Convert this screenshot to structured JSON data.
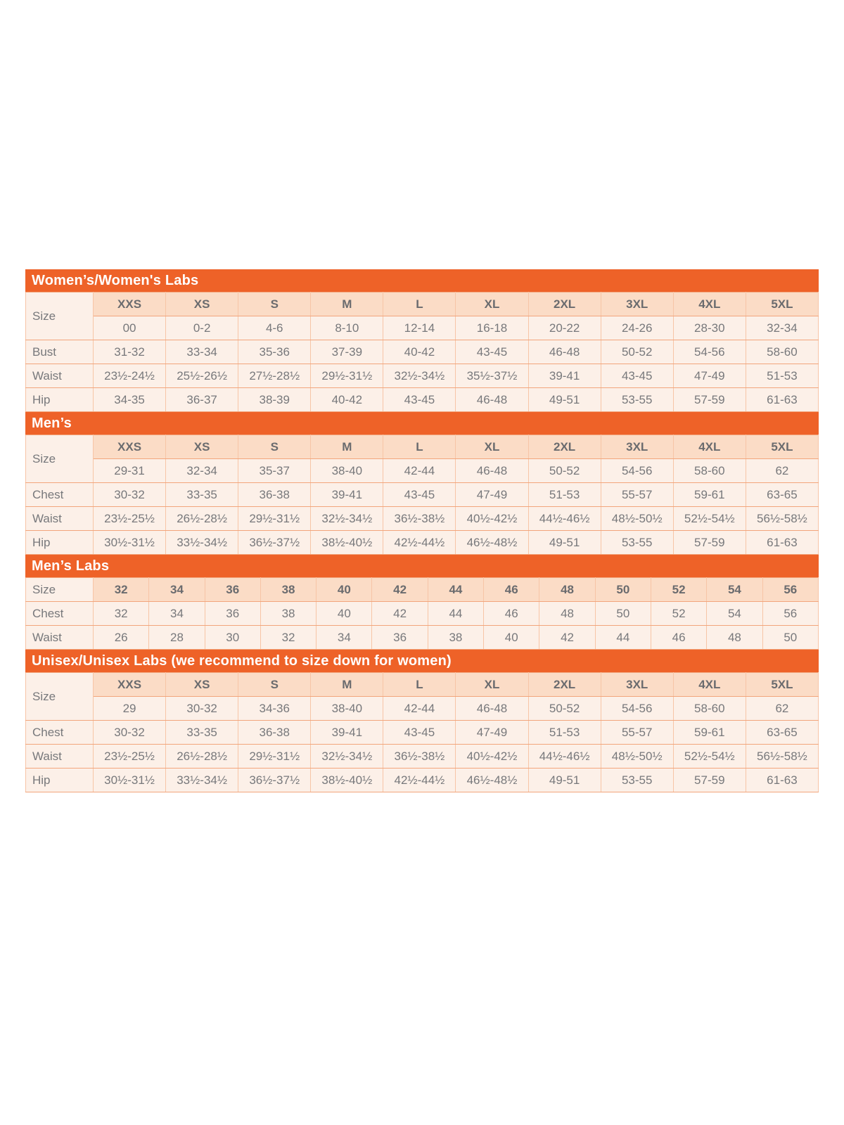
{
  "colors": {
    "band_orange": "#EE6228",
    "band_text": "#FFFFFF",
    "header_cell_bg": "#FBDCC6",
    "cell_bg": "#FCF0E8",
    "border_horizontal": "#F2A57C",
    "border_vertical": "#F7C5A6",
    "cell_text": "#77787B",
    "header_text": "#6A6B6E"
  },
  "tables": [
    {
      "title": "Women’s/Women's Labs",
      "label_header": "Size",
      "size_headers": [
        "XXS",
        "XS",
        "S",
        "M",
        "L",
        "XL",
        "2XL",
        "3XL",
        "4XL",
        "5XL"
      ],
      "size_numbers": [
        "00",
        "0-2",
        "4-6",
        "8-10",
        "12-14",
        "16-18",
        "20-22",
        "24-26",
        "28-30",
        "32-34"
      ],
      "rows": [
        {
          "label": "Bust",
          "values": [
            "31-32",
            "33-34",
            "35-36",
            "37-39",
            "40-42",
            "43-45",
            "46-48",
            "50-52",
            "54-56",
            "58-60"
          ]
        },
        {
          "label": "Waist",
          "values": [
            "23½-24½",
            "25½-26½",
            "27½-28½",
            "29½-31½",
            "32½-34½",
            "35½-37½",
            "39-41",
            "43-45",
            "47-49",
            "51-53"
          ]
        },
        {
          "label": "Hip",
          "values": [
            "34-35",
            "36-37",
            "38-39",
            "40-42",
            "43-45",
            "46-48",
            "49-51",
            "53-55",
            "57-59",
            "61-63"
          ]
        }
      ]
    },
    {
      "title": "Men’s",
      "label_header": "Size",
      "size_headers": [
        "XXS",
        "XS",
        "S",
        "M",
        "L",
        "XL",
        "2XL",
        "3XL",
        "4XL",
        "5XL"
      ],
      "size_numbers": [
        "29-31",
        "32-34",
        "35-37",
        "38-40",
        "42-44",
        "46-48",
        "50-52",
        "54-56",
        "58-60",
        "62"
      ],
      "rows": [
        {
          "label": "Chest",
          "values": [
            "30-32",
            "33-35",
            "36-38",
            "39-41",
            "43-45",
            "47-49",
            "51-53",
            "55-57",
            "59-61",
            "63-65"
          ]
        },
        {
          "label": "Waist",
          "values": [
            "23½-25½",
            "26½-28½",
            "29½-31½",
            "32½-34½",
            "36½-38½",
            "40½-42½",
            "44½-46½",
            "48½-50½",
            "52½-54½",
            "56½-58½"
          ]
        },
        {
          "label": "Hip",
          "values": [
            "30½-31½",
            "33½-34½",
            "36½-37½",
            "38½-40½",
            "42½-44½",
            "46½-48½",
            "49-51",
            "53-55",
            "57-59",
            "61-63"
          ]
        }
      ]
    },
    {
      "title": "Men’s Labs",
      "label_header": "Size",
      "size_headers": [
        "32",
        "34",
        "36",
        "38",
        "40",
        "42",
        "44",
        "46",
        "48",
        "50",
        "52",
        "54",
        "56"
      ],
      "size_numbers": null,
      "rows": [
        {
          "label": "Chest",
          "values": [
            "32",
            "34",
            "36",
            "38",
            "40",
            "42",
            "44",
            "46",
            "48",
            "50",
            "52",
            "54",
            "56"
          ]
        },
        {
          "label": "Waist",
          "values": [
            "26",
            "28",
            "30",
            "32",
            "34",
            "36",
            "38",
            "40",
            "42",
            "44",
            "46",
            "48",
            "50"
          ]
        }
      ]
    },
    {
      "title": "Unisex/Unisex Labs (we recommend to size down for women)",
      "label_header": "Size",
      "size_headers": [
        "XXS",
        "XS",
        "S",
        "M",
        "L",
        "XL",
        "2XL",
        "3XL",
        "4XL",
        "5XL"
      ],
      "size_numbers": [
        "29",
        "30-32",
        "34-36",
        "38-40",
        "42-44",
        "46-48",
        "50-52",
        "54-56",
        "58-60",
        "62"
      ],
      "rows": [
        {
          "label": "Chest",
          "values": [
            "30-32",
            "33-35",
            "36-38",
            "39-41",
            "43-45",
            "47-49",
            "51-53",
            "55-57",
            "59-61",
            "63-65"
          ]
        },
        {
          "label": "Waist",
          "values": [
            "23½-25½",
            "26½-28½",
            "29½-31½",
            "32½-34½",
            "36½-38½",
            "40½-42½",
            "44½-46½",
            "48½-50½",
            "52½-54½",
            "56½-58½"
          ]
        },
        {
          "label": "Hip",
          "values": [
            "30½-31½",
            "33½-34½",
            "36½-37½",
            "38½-40½",
            "42½-44½",
            "46½-48½",
            "49-51",
            "53-55",
            "57-59",
            "61-63"
          ]
        }
      ]
    }
  ]
}
